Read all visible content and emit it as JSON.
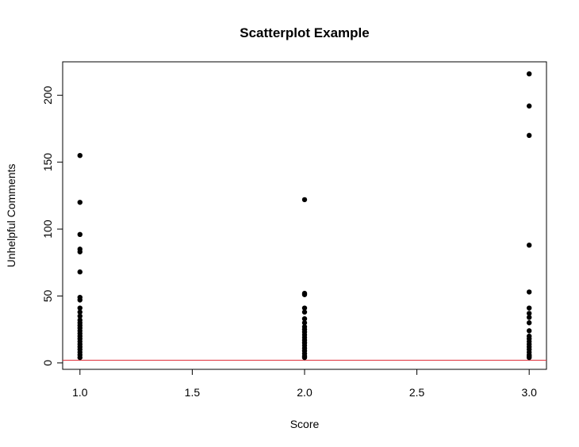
{
  "chart_data": {
    "type": "scatter",
    "title": "Scatterplot Example",
    "x_label": "Score",
    "y_label": "Unhelpful Comments",
    "x": [
      1,
      1,
      1,
      1,
      1,
      1,
      1,
      1,
      1,
      1,
      1,
      1,
      1,
      1,
      1,
      1,
      1,
      1,
      1,
      1,
      1,
      1,
      1,
      1,
      1,
      1,
      2,
      2,
      2,
      2,
      2,
      2,
      2,
      2,
      2,
      2,
      2,
      2,
      2,
      2,
      2,
      2,
      2,
      2,
      2,
      2,
      3,
      3,
      3,
      3,
      3,
      3,
      3,
      3,
      3,
      3,
      3,
      3,
      3,
      3,
      3,
      3,
      3,
      3,
      3,
      3
    ],
    "values": [
      155,
      120,
      96,
      85,
      83,
      68,
      49,
      47,
      41,
      38,
      35,
      32,
      30,
      28,
      26,
      24,
      22,
      20,
      18,
      16,
      14,
      12,
      10,
      8,
      6,
      4,
      122,
      52,
      51,
      41,
      38,
      33,
      30,
      27,
      25,
      23,
      21,
      19,
      17,
      15,
      13,
      11,
      9,
      7,
      5,
      4,
      216,
      192,
      170,
      88,
      53,
      41,
      37,
      34,
      30,
      24,
      20,
      18,
      16,
      14,
      12,
      10,
      8,
      6,
      5,
      4
    ],
    "color": "#000000",
    "xlim": [
      0.923,
      3.077
    ],
    "ylim": [
      -4.8,
      225
    ],
    "xticks": [
      {
        "value": 1,
        "label": "1.0"
      },
      {
        "value": 1.5,
        "label": "1.5"
      },
      {
        "value": 2,
        "label": "2.0"
      },
      {
        "value": 2.5,
        "label": "2.5"
      },
      {
        "value": 3,
        "label": "3.0"
      }
    ],
    "yticks": [
      0,
      50,
      100,
      150,
      200
    ],
    "reference_line": {
      "value": 2,
      "color": "#e0303a"
    }
  }
}
